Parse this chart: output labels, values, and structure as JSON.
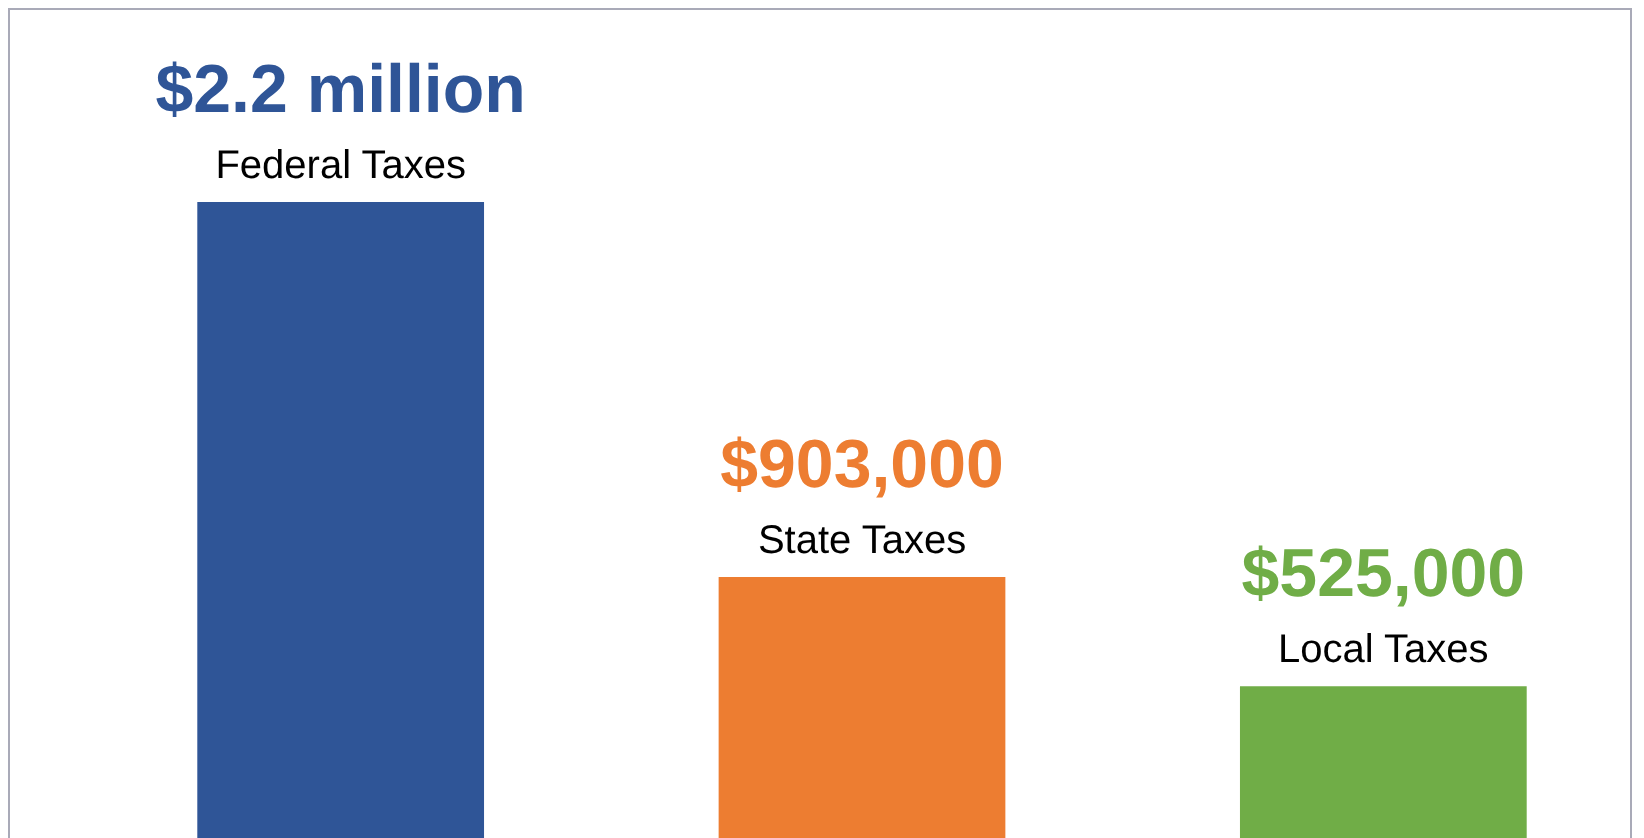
{
  "chart_data": {
    "type": "bar",
    "categories": [
      "Federal Taxes",
      "State Taxes",
      "Local Taxes"
    ],
    "values": [
      2200000,
      903000,
      525000
    ],
    "colors": [
      "#2f5597",
      "#ed7d31",
      "#70ad47"
    ],
    "value_labels": [
      "$2.2 million",
      "$903,000",
      "$525,000"
    ],
    "legend": false
  }
}
